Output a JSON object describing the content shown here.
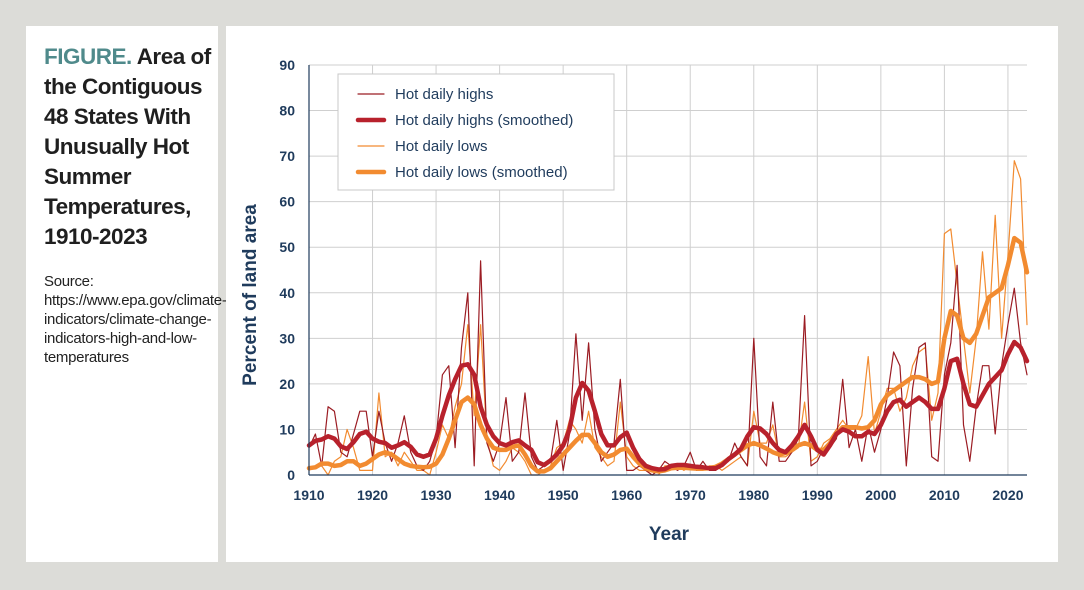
{
  "figure": {
    "label": "FIGURE.",
    "title": "Area of the Contiguous 48 States With Unusually Hot Summer Temperatures, 1910-2023",
    "source": "Source: https://www.epa.gov/climate-indicators/climate-change-indicators-high-and-low-temperatures"
  },
  "chart_data": {
    "type": "line",
    "xlabel": "Year",
    "ylabel": "Percent of land area",
    "xlim": [
      1910,
      2023
    ],
    "ylim": [
      0,
      90
    ],
    "xticks": [
      "1910",
      "1920",
      "1930",
      "1940",
      "1950",
      "1960",
      "1970",
      "1980",
      "1990",
      "2000",
      "2010",
      "2020"
    ],
    "yticks": [
      "0",
      "10",
      "20",
      "30",
      "40",
      "50",
      "60",
      "70",
      "80",
      "90"
    ],
    "grid": true,
    "legend_position": "top-left",
    "x": [
      1910,
      1911,
      1912,
      1913,
      1914,
      1915,
      1916,
      1917,
      1918,
      1919,
      1920,
      1921,
      1922,
      1923,
      1924,
      1925,
      1926,
      1927,
      1928,
      1929,
      1930,
      1931,
      1932,
      1933,
      1934,
      1935,
      1936,
      1937,
      1938,
      1939,
      1940,
      1941,
      1942,
      1943,
      1944,
      1945,
      1946,
      1947,
      1948,
      1949,
      1950,
      1951,
      1952,
      1953,
      1954,
      1955,
      1956,
      1957,
      1958,
      1959,
      1960,
      1961,
      1962,
      1963,
      1964,
      1965,
      1966,
      1967,
      1968,
      1969,
      1970,
      1971,
      1972,
      1973,
      1974,
      1975,
      1976,
      1977,
      1978,
      1979,
      1980,
      1981,
      1982,
      1983,
      1984,
      1985,
      1986,
      1987,
      1988,
      1989,
      1990,
      1991,
      1992,
      1993,
      1994,
      1995,
      1996,
      1997,
      1998,
      1999,
      2000,
      2001,
      2002,
      2003,
      2004,
      2005,
      2006,
      2007,
      2008,
      2009,
      2010,
      2011,
      2012,
      2013,
      2014,
      2015,
      2016,
      2017,
      2018,
      2019,
      2020,
      2021,
      2022,
      2023
    ],
    "series": [
      {
        "name": "Hot daily highs",
        "color": "#9b1c23",
        "style": "thin",
        "values": [
          6,
          9,
          2,
          15,
          14,
          5,
          4,
          9,
          14,
          14,
          4,
          14,
          7,
          3,
          7,
          13,
          5,
          2,
          1,
          3,
          8,
          22,
          24,
          6,
          28,
          40,
          2,
          47,
          7,
          3,
          7,
          17,
          3,
          5,
          18,
          4,
          1,
          2,
          3,
          12,
          1,
          9,
          31,
          12,
          29,
          10,
          3,
          5,
          7,
          21,
          1,
          1,
          2,
          1,
          0,
          1,
          3,
          2,
          1,
          2,
          5,
          1,
          3,
          1,
          1,
          2,
          3,
          7,
          4,
          2,
          30,
          4,
          2,
          16,
          3,
          3,
          5,
          8,
          35,
          2,
          3,
          6,
          6,
          8,
          21,
          6,
          10,
          3,
          11,
          5,
          10,
          17,
          27,
          24,
          2,
          19,
          28,
          29,
          4,
          3,
          22,
          29,
          46,
          11,
          3,
          15,
          24,
          24,
          9,
          24,
          33,
          41,
          29,
          22
        ]
      },
      {
        "name": "Hot daily highs (smoothed)",
        "color": "#b8212c",
        "style": "thick",
        "values": [
          6.5,
          7.5,
          7.8,
          8.5,
          8,
          6.3,
          5.7,
          7.2,
          9,
          9.5,
          8,
          7.3,
          7,
          6,
          6.5,
          7.2,
          6.2,
          4.5,
          4,
          4.5,
          8,
          13,
          17.5,
          21,
          24,
          24.3,
          22,
          15,
          11,
          8.5,
          7,
          6.5,
          7.2,
          7.6,
          6.5,
          5.5,
          2.8,
          2.2,
          3.2,
          4.5,
          6.5,
          10,
          17,
          20.2,
          18.5,
          14,
          9,
          6.5,
          6.5,
          8.3,
          9.3,
          6,
          3.5,
          2,
          1.5,
          1.2,
          1.3,
          2,
          2.2,
          2.2,
          2,
          1.8,
          1.7,
          1.5,
          1.5,
          2.2,
          3.5,
          4.5,
          5.8,
          8.5,
          10.5,
          10.2,
          9,
          7,
          5.5,
          5,
          6.5,
          8.5,
          11,
          8.5,
          5.5,
          4.5,
          6.5,
          9,
          10,
          9.5,
          8.5,
          8.5,
          9.5,
          9,
          11,
          14,
          16,
          16.5,
          15,
          16,
          17,
          16,
          14.5,
          14.5,
          19,
          25,
          25.5,
          20,
          15.5,
          15,
          17.5,
          20,
          21.5,
          23,
          26.5,
          29.2,
          28,
          25
        ]
      },
      {
        "name": "Hot daily lows",
        "color": "#f28b30",
        "style": "thin",
        "values": [
          1,
          2,
          2,
          0,
          3,
          4,
          10,
          6,
          1,
          1,
          1,
          18,
          4,
          5,
          2,
          5,
          3,
          1,
          1,
          0,
          5,
          11,
          8,
          15,
          20,
          33,
          13,
          33,
          8,
          2,
          1,
          3,
          6,
          5,
          3,
          0,
          0,
          1,
          2,
          6,
          7,
          12,
          10,
          7,
          14,
          6,
          4,
          2,
          3,
          16,
          4,
          2,
          1,
          1,
          0,
          0,
          2,
          2,
          2,
          1,
          2,
          1,
          1,
          2,
          2,
          1,
          2,
          3,
          4,
          2,
          14,
          7,
          7,
          11,
          4,
          4,
          5,
          6,
          16,
          3,
          4,
          7,
          8,
          10,
          12,
          10,
          10,
          13,
          26,
          9,
          14,
          19,
          19,
          14,
          17,
          24,
          27,
          28,
          12,
          18,
          53,
          54,
          42,
          30,
          18,
          30,
          49,
          32,
          57,
          30,
          48,
          69,
          65,
          33
        ]
      },
      {
        "name": "Hot daily lows (smoothed)",
        "color": "#f28b30",
        "style": "thick",
        "values": [
          1.5,
          1.7,
          2.5,
          2.5,
          2,
          2.2,
          3,
          3,
          2,
          2.5,
          3.5,
          4.5,
          5,
          4.5,
          3.5,
          2.5,
          2,
          1.8,
          1.7,
          1.8,
          2.5,
          4.5,
          8,
          12,
          16,
          17,
          15.5,
          11,
          8,
          6,
          5.5,
          5.5,
          6.2,
          6.5,
          4.5,
          2,
          0.8,
          0.8,
          1.5,
          3,
          4.5,
          6,
          7.5,
          8.8,
          8.8,
          7,
          5,
          4,
          4.5,
          5.5,
          5.8,
          4,
          2.5,
          1.5,
          1,
          0.8,
          1,
          1.5,
          1.6,
          1.6,
          1.5,
          1.4,
          1.4,
          1.5,
          1.8,
          2.5,
          3.5,
          4.5,
          5.5,
          6.5,
          7,
          6.5,
          5.8,
          5,
          4.5,
          4.8,
          5.5,
          6.5,
          7,
          6.5,
          5.5,
          5.5,
          7,
          9,
          10.5,
          10.5,
          10.5,
          10.2,
          10.5,
          12,
          15.5,
          17.5,
          18.5,
          19.5,
          20.5,
          21.5,
          21.5,
          21,
          20,
          20.5,
          30,
          36,
          35,
          30,
          29,
          31,
          35,
          39,
          40,
          41,
          46,
          52,
          51,
          44.5
        ]
      }
    ]
  }
}
